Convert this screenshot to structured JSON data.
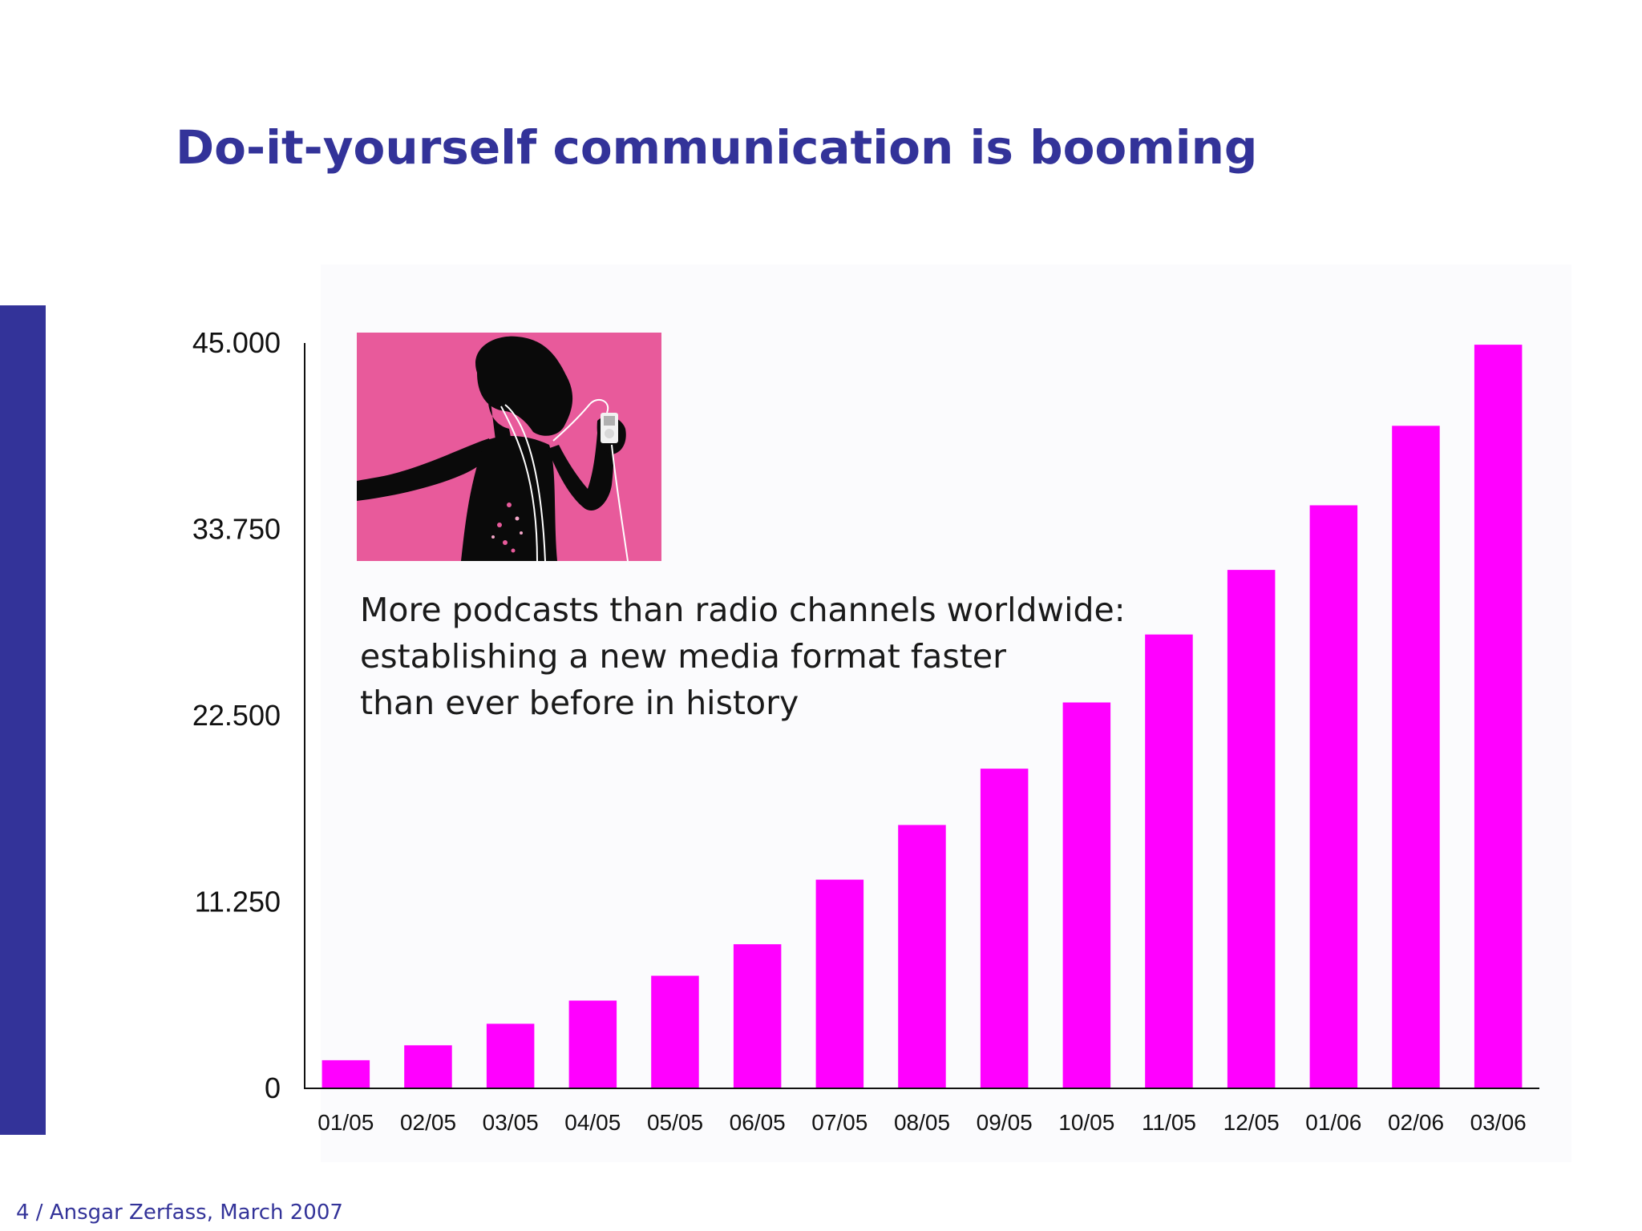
{
  "slide": {
    "title": "Do-it-yourself communication is booming",
    "footer": "4 / Ansgar Zerfass, March 2007",
    "accent_color": "#333399"
  },
  "annotation": {
    "lines": [
      "More podcasts than radio channels worldwide:",
      "establishing a new media format faster",
      "than ever before in history"
    ]
  },
  "photo": {
    "description_icon": "silhouette-dancer-with-music-player",
    "background_color": "#e85a9b"
  },
  "chart_data": {
    "type": "bar",
    "title": "",
    "xlabel": "",
    "ylabel": "",
    "categories": [
      "01/05",
      "02/05",
      "03/05",
      "04/05",
      "05/05",
      "06/05",
      "07/05",
      "08/05",
      "09/05",
      "10/05",
      "11/05",
      "12/05",
      "01/06",
      "02/06",
      "03/06"
    ],
    "values": [
      1700,
      2600,
      3900,
      5300,
      6800,
      8700,
      12600,
      15900,
      19300,
      23300,
      27400,
      31300,
      35200,
      40000,
      44900
    ],
    "ylim": [
      0,
      45000
    ],
    "yticks": [
      0,
      11250,
      22500,
      33750,
      45000
    ],
    "ytick_labels": [
      "0",
      "11.250",
      "22.500",
      "33.750",
      "45.000"
    ],
    "bar_color": "#ff00ff",
    "grid": false,
    "legend": "none"
  }
}
